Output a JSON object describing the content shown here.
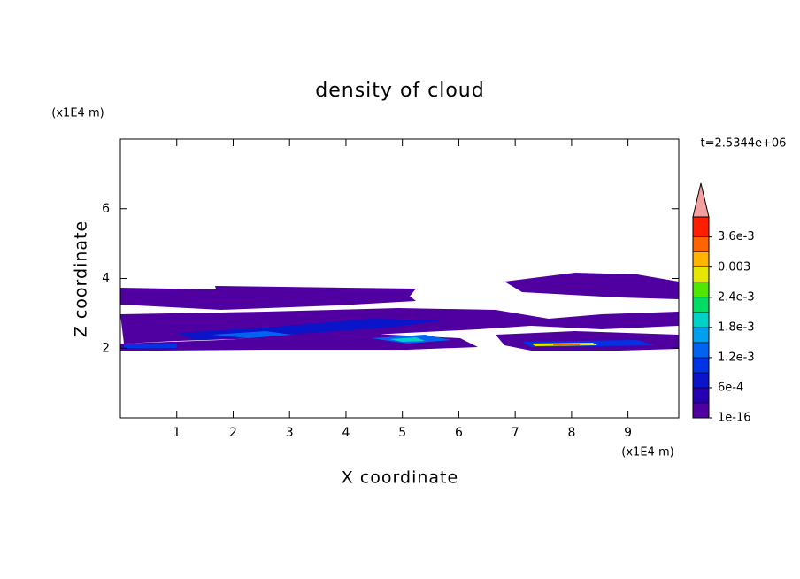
{
  "chart_data": {
    "type": "contour",
    "title": "density of cloud",
    "x_label": "X coordinate",
    "y_label": "Z coordinate",
    "x_unit": "(x1E4 m)",
    "y_unit": "(x1E4 m)",
    "time_label": "t=2.5344e+06",
    "xlim": [
      0,
      9.9
    ],
    "xticks": [
      1,
      2,
      3,
      4,
      5,
      6,
      7,
      8,
      9
    ],
    "ylim": [
      0,
      8
    ],
    "yticks": [
      2,
      4,
      6
    ],
    "colorbar": {
      "clim": [
        1e-16,
        0.004
      ],
      "levels": [
        1e-16,
        0.0003,
        0.0006,
        0.0009,
        0.0012,
        0.0015,
        0.0018,
        0.0021,
        0.0024,
        0.0027,
        0.003,
        0.0033,
        0.0036
      ],
      "colors": [
        "#5000a0",
        "#2800b4",
        "#0a14c8",
        "#0032e6",
        "#0064f0",
        "#00a0f0",
        "#00d2c8",
        "#00dc64",
        "#50e600",
        "#e6e600",
        "#ffb400",
        "#ff6400",
        "#ff1e00"
      ],
      "extend_color": "#f4a0a0",
      "ticks": [
        1e-16,
        {
          "value": 0.0006,
          "label": "6e-4"
        },
        {
          "value": 0.0012,
          "label": "1.2e-3"
        },
        {
          "value": 0.0018,
          "label": "1.8e-3"
        },
        {
          "value": 0.0024,
          "label": "2.4e-3"
        },
        0.003,
        {
          "value": 0.0036,
          "label": "3.6e-3"
        }
      ]
    }
  }
}
